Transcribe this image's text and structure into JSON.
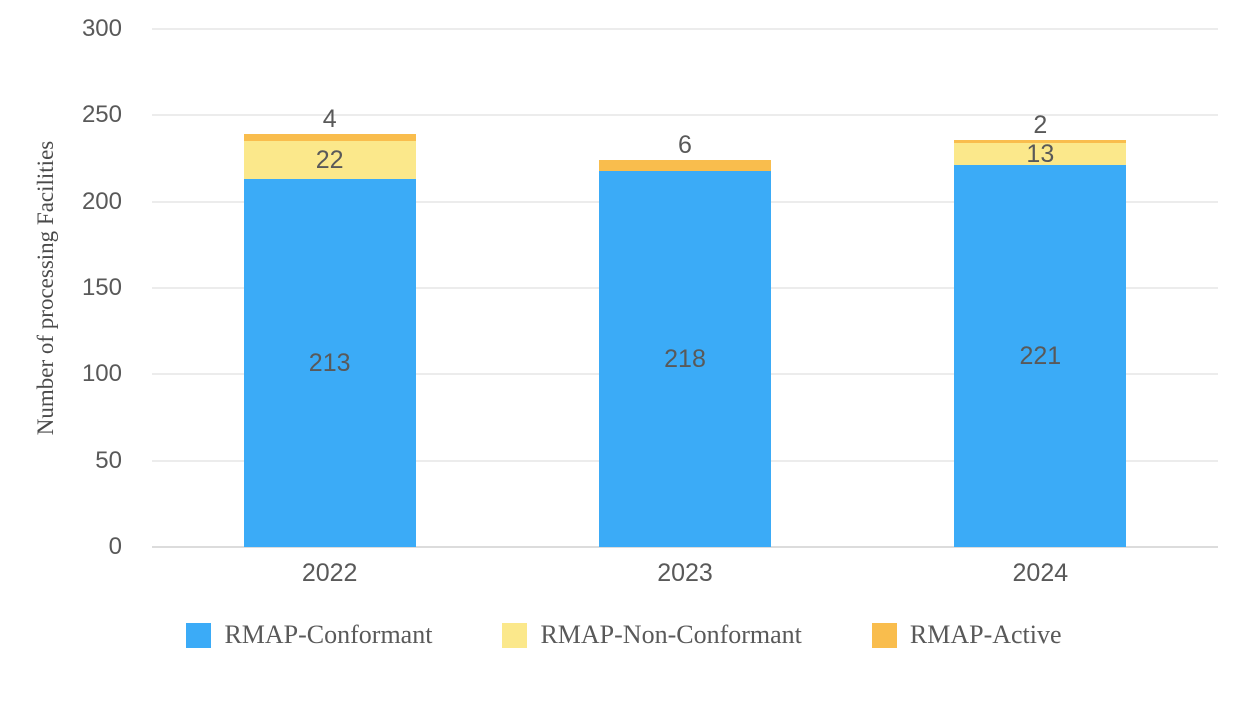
{
  "chart_data": {
    "type": "bar",
    "stacked": true,
    "title": "",
    "categories": [
      "2022",
      "2023",
      "2024"
    ],
    "series": [
      {
        "name": "RMAP-Conformant",
        "color": "#3BABF7",
        "values": [
          213,
          218,
          221
        ]
      },
      {
        "name": "RMAP-Non-Conformant",
        "color": "#FBE88B",
        "values": [
          22,
          0,
          13
        ]
      },
      {
        "name": "RMAP-Active",
        "color": "#F9BD4D",
        "values": [
          4,
          6,
          2
        ]
      }
    ],
    "xlabel": "",
    "ylabel": "Number of processing Facilities",
    "ylim": [
      0,
      300
    ],
    "ytick_step": 50,
    "yticks": [
      "0",
      "50",
      "100",
      "150",
      "200",
      "250",
      "300"
    ],
    "grid": "horizontal",
    "legend_position": "bottom",
    "data_labels": true,
    "colors": {
      "gridline": "#ECECEC",
      "axis_line": "#DCDCDC",
      "tick_text": "#595959",
      "label_text": "#595959"
    }
  }
}
